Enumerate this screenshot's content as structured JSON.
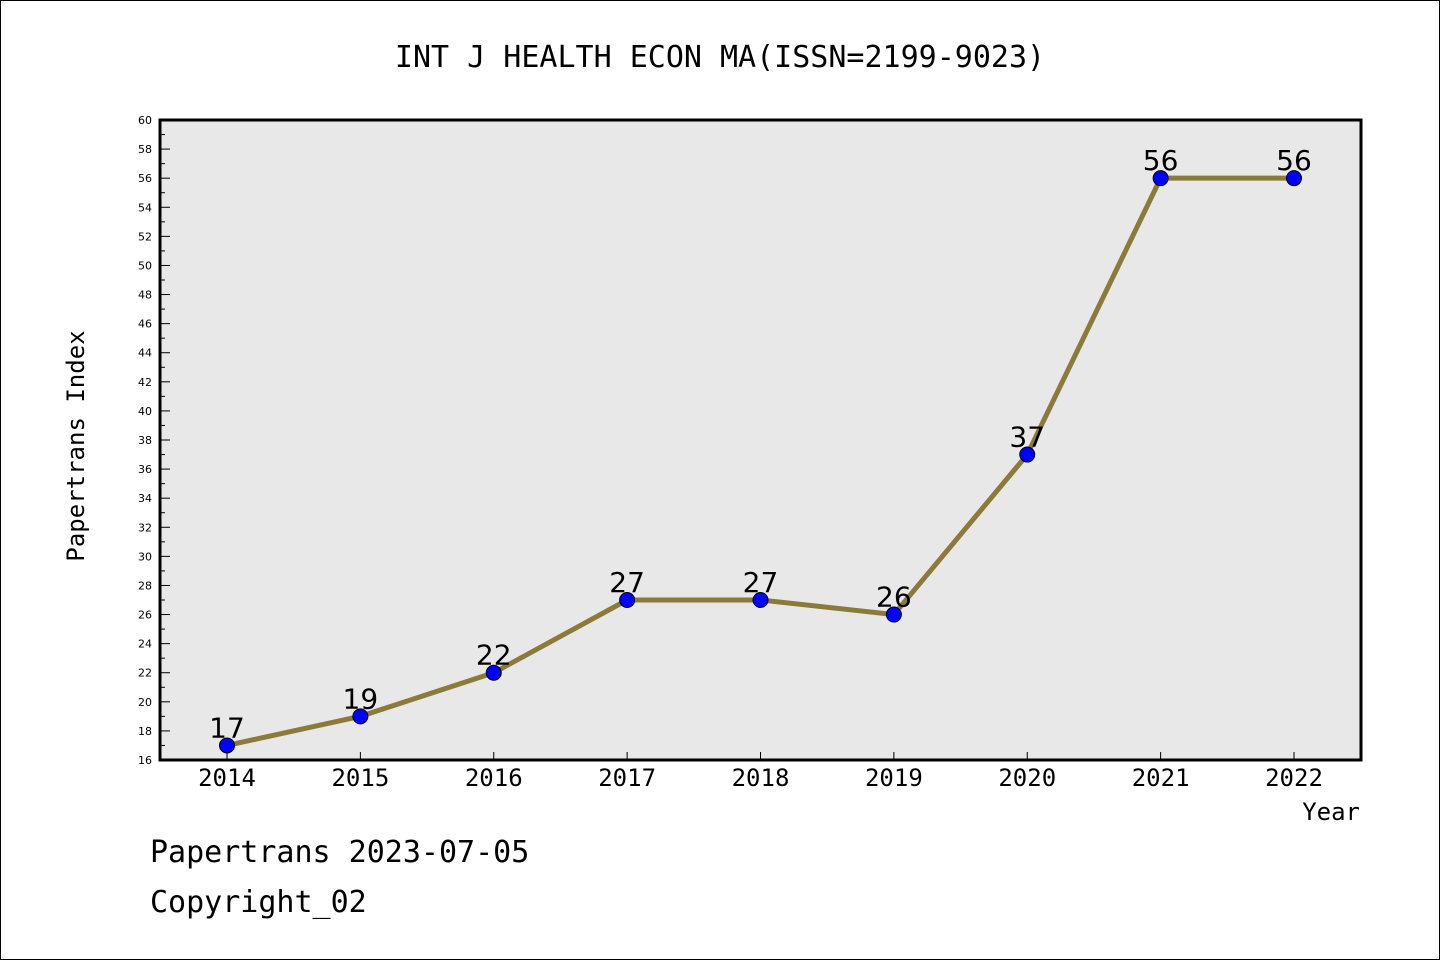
{
  "chart_data": {
    "type": "line",
    "title": "INT J HEALTH ECON MA(ISSN=2199-9023)",
    "xlabel": "Year",
    "ylabel": "Papertrans Index",
    "categories": [
      "2014",
      "2015",
      "2016",
      "2017",
      "2018",
      "2019",
      "2020",
      "2021",
      "2022"
    ],
    "series": [
      {
        "name": "Papertrans Index",
        "values": [
          17,
          19,
          22,
          27,
          27,
          26,
          37,
          56,
          56
        ]
      }
    ],
    "data_labels": [
      "17",
      "19",
      "22",
      "27",
      "27",
      "26",
      "37",
      "56",
      "56"
    ],
    "ylim": [
      16,
      60
    ],
    "yticks": [
      "16",
      "18",
      "20",
      "22",
      "24",
      "26",
      "28",
      "30",
      "32",
      "34",
      "36",
      "38",
      "40",
      "42",
      "44",
      "46",
      "48",
      "50",
      "52",
      "54",
      "56",
      "58",
      "60"
    ],
    "grid": false,
    "colors": {
      "line": "#8c7a3a",
      "marker": "#0000ff",
      "plot_bg": "#e8e8e8"
    }
  },
  "footer": {
    "line1": "Papertrans 2023-07-05",
    "line2": "Copyright_02"
  }
}
